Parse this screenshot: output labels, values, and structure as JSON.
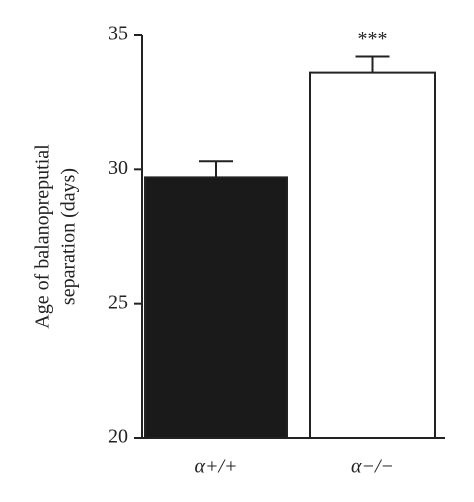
{
  "chart_data": {
    "type": "bar",
    "ylabel": [
      "Age of balanopreputial",
      "separation (days)"
    ],
    "categories": [
      "α+/+",
      "α−/−"
    ],
    "values": [
      29.7,
      33.6
    ],
    "errors": [
      0.6,
      0.6
    ],
    "colors": [
      "#1a1a1a",
      "#ffffff"
    ],
    "annotations": [
      null,
      "***"
    ],
    "ylim": [
      20,
      35
    ],
    "yticks": [
      20,
      25,
      30,
      35
    ]
  }
}
